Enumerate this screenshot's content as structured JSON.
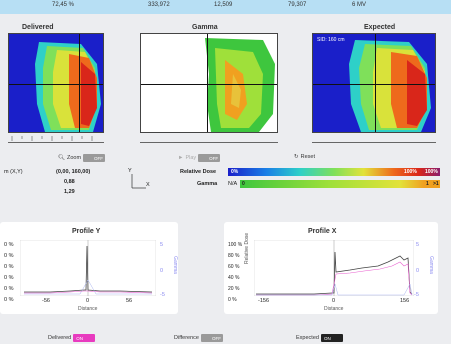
{
  "topbar": {
    "v1": "72,45 %",
    "v2": "333,972",
    "v3": "12,509",
    "v4": "79,307",
    "v5": "6 MV"
  },
  "panels": {
    "delivered": "Delivered",
    "gamma": "Gamma",
    "expected": "Expected",
    "sid": "SID: 160 cm"
  },
  "controls": {
    "zoom": "Zoom",
    "zoom_state": "OFF",
    "play": "Play",
    "play_state": "OFF",
    "reset": "Reset"
  },
  "info": {
    "coord_label": "m (X,Y)",
    "coord_value": "(0,00, 160,00)",
    "val1": "0,88",
    "val2": "1,29",
    "axis_y": "Y",
    "axis_x": "X"
  },
  "legend": {
    "relative_dose": "Relative Dose",
    "dose_start": "0%",
    "dose_100": "100%",
    "dose_end": "100%",
    "gamma_label": "Gamma",
    "gamma_na": "N/A",
    "gamma_zero": "0",
    "gamma_one": "1",
    "gamma_gt1": ">1"
  },
  "profile_y": {
    "title": "Profile Y",
    "yticks": [
      "0 %",
      "0 %",
      "0 %",
      "0 %",
      "0 %",
      "0 %"
    ],
    "xticks": [
      "-56",
      "0",
      "56"
    ],
    "rticks": [
      "5",
      "0",
      "-5"
    ],
    "xlabel": "Distance",
    "rlabel": "Gamma"
  },
  "profile_x": {
    "title": "Profile X",
    "yticks": [
      "100 %",
      "80 %",
      "60 %",
      "40 %",
      "20 %",
      "0 %"
    ],
    "xticks": [
      "-156",
      "0",
      "156"
    ],
    "rticks": [
      "5",
      "0",
      "-5"
    ],
    "xlabel": "Distance",
    "ylabel": "Relative Dose",
    "rlabel": "Gamma"
  },
  "bottom": {
    "delivered": "Delivered",
    "delivered_state": "ON",
    "difference": "Difference",
    "difference_state": "OFF",
    "expected": "Expected",
    "expected_state": "ON"
  },
  "colors": {
    "topbar": "#b7dff4",
    "pink_toggle": "#e83bbf",
    "dose_map_bg": "#1a1fc9"
  }
}
